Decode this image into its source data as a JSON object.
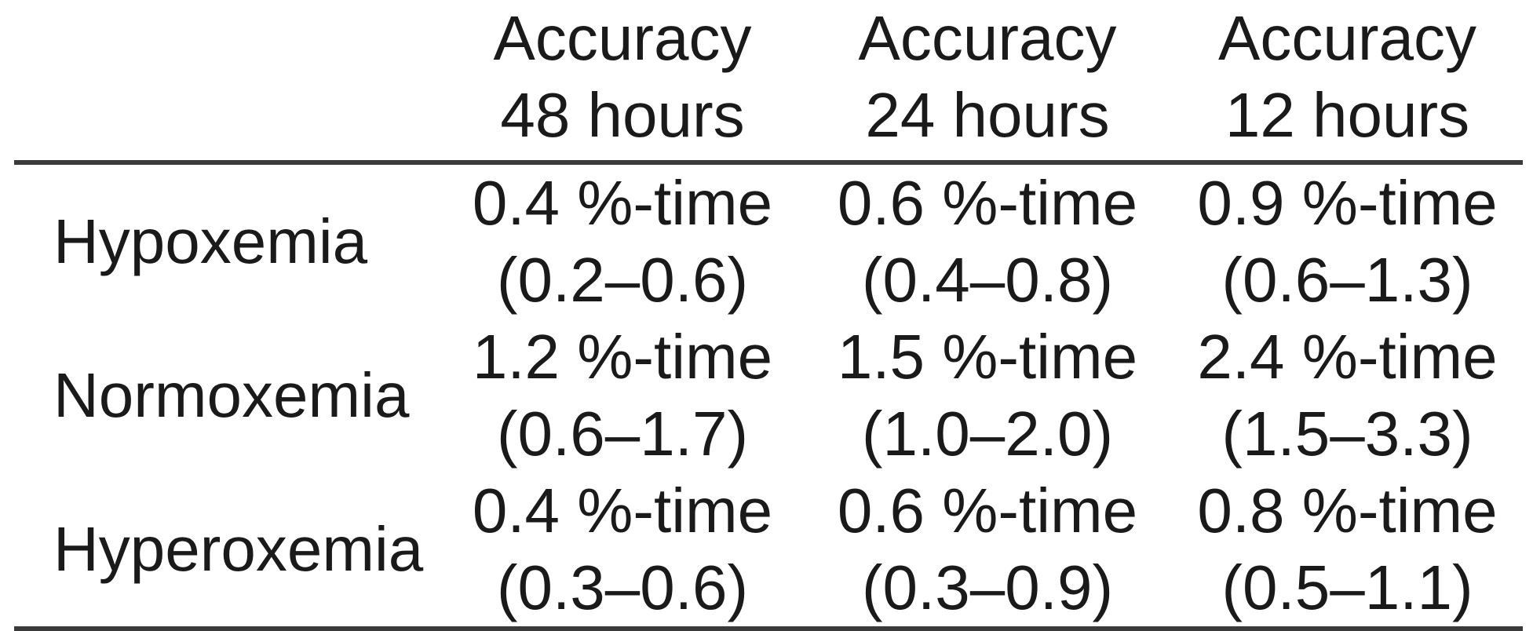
{
  "table": {
    "headers": [
      {
        "line1": "",
        "line2": ""
      },
      {
        "line1": "Accuracy",
        "line2": "48 hours"
      },
      {
        "line1": "Accuracy",
        "line2": "24 hours"
      },
      {
        "line1": "Accuracy",
        "line2": "12 hours"
      }
    ],
    "rows": [
      {
        "label": "Hypoxemia",
        "cells": [
          {
            "value": "0.4 %-time",
            "range": "(0.2–0.6)"
          },
          {
            "value": "0.6 %-time",
            "range": "(0.4–0.8)"
          },
          {
            "value": "0.9 %-time",
            "range": "(0.6–1.3)"
          }
        ]
      },
      {
        "label": "Normoxemia",
        "cells": [
          {
            "value": "1.2 %-time",
            "range": "(0.6–1.7)"
          },
          {
            "value": "1.5 %-time",
            "range": "(1.0–2.0)"
          },
          {
            "value": "2.4 %-time",
            "range": "(1.5–3.3)"
          }
        ]
      },
      {
        "label": "Hyperoxemia",
        "cells": [
          {
            "value": "0.4 %-time",
            "range": "(0.3–0.6)"
          },
          {
            "value": "0.6 %-time",
            "range": "(0.3–0.9)"
          },
          {
            "value": "0.8 %-time",
            "range": "(0.5–1.1)"
          }
        ]
      }
    ]
  }
}
